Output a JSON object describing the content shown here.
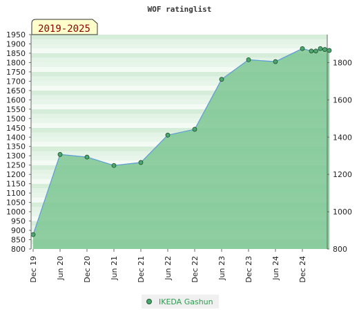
{
  "chart_data": {
    "type": "area",
    "title": "WOF ratinglist",
    "badge": "2019-2025",
    "xlabel": "",
    "ylabel": "",
    "x_ticks": [
      "Dec 19",
      "Jun 20",
      "Dec 20",
      "Jun 21",
      "Dec 21",
      "Jun 22",
      "Dec 22",
      "Jun 23",
      "Dec 23",
      "Jun 24",
      "Dec 24"
    ],
    "ylim": [
      800,
      1950
    ],
    "y_left_ticks": [
      800,
      850,
      900,
      950,
      1000,
      1050,
      1100,
      1150,
      1200,
      1250,
      1300,
      1350,
      1400,
      1450,
      1500,
      1550,
      1600,
      1650,
      1700,
      1750,
      1800,
      1850,
      1900,
      1950
    ],
    "y_right_ticks": [
      800,
      1000,
      1200,
      1400,
      1600,
      1800
    ],
    "grid": false,
    "legend_position": "bottom-center",
    "colors": {
      "fill": "#7cc592",
      "line": "#5b9bd5",
      "marker": "#4aa86e"
    },
    "series": [
      {
        "name": "IKEDA Gashun",
        "x": [
          "Dec 19",
          "Jun 20",
          "Dec 20",
          "Jun 21",
          "Dec 21",
          "Jun 22",
          "Dec 22",
          "Jun 23",
          "Dec 23",
          "Jun 24",
          "Dec 24",
          "Feb 25",
          "Mar 25",
          "Apr 25",
          "May 25",
          "Jun 25"
        ],
        "values": [
          877,
          1307,
          1293,
          1248,
          1264,
          1411,
          1442,
          1710,
          1815,
          1805,
          1875,
          1862,
          1862,
          1875,
          1870,
          1865
        ]
      }
    ]
  }
}
